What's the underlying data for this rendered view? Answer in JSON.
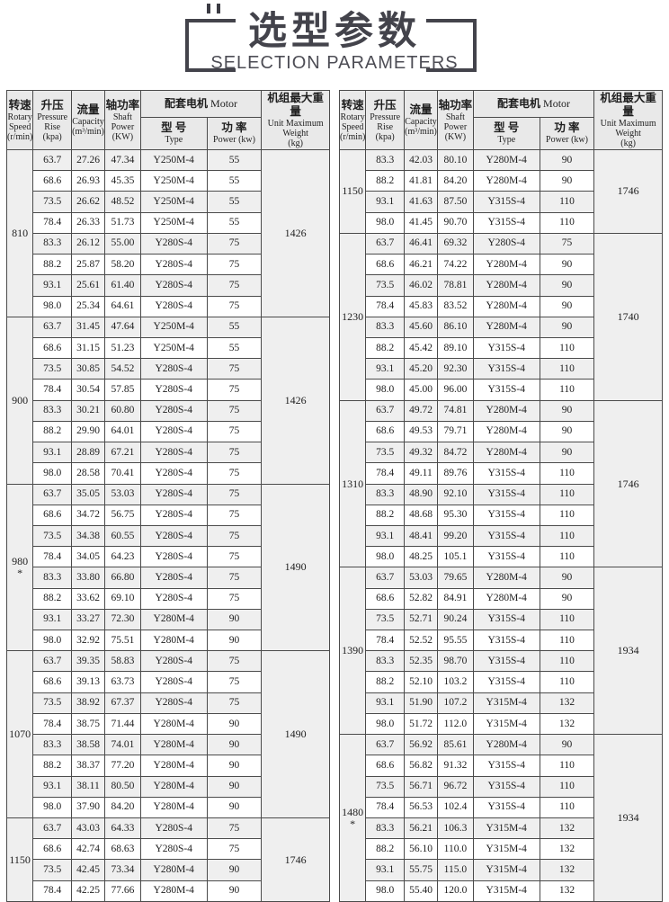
{
  "title": {
    "zh": "选型参数",
    "en": "SELECTION PARAMETERS"
  },
  "colors": {
    "title_text": "#43434b",
    "header_bg": "#e9e9e9",
    "row_shade": "#efefef",
    "border": "#4b4b4b"
  },
  "header": {
    "rotary_speed": {
      "zh": "转速",
      "en": "Rotary\nSpeed\n(r/min)"
    },
    "pressure_rise": {
      "zh": "升压",
      "en": "Pressure\nRise\n(kpa)"
    },
    "capacity": {
      "zh": "流量",
      "en": "Capacity\n(m³/min)"
    },
    "shaft_power": {
      "zh": "轴功率",
      "en": "Shaft\nPower\n(KW)"
    },
    "motor": {
      "zh": "配套电机",
      "en": " Motor"
    },
    "motor_type": {
      "zh": "型 号",
      "en": "Type"
    },
    "motor_power": {
      "zh": "功 率",
      "en": "Power (kw)"
    },
    "weight": {
      "zh": "机组最大重量",
      "en": "Unit Maximum\nWeight\n(kg)"
    }
  },
  "tables": [
    {
      "side": "left",
      "groups": [
        {
          "speed": "810",
          "note": "",
          "weight": "1426",
          "rows": [
            [
              "63.7",
              "27.26",
              "47.34",
              "Y250M-4",
              "55"
            ],
            [
              "68.6",
              "26.93",
              "45.35",
              "Y250M-4",
              "55"
            ],
            [
              "73.5",
              "26.62",
              "48.52",
              "Y250M-4",
              "55"
            ],
            [
              "78.4",
              "26.33",
              "51.73",
              "Y250M-4",
              "55"
            ],
            [
              "83.3",
              "26.12",
              "55.00",
              "Y280S-4",
              "75"
            ],
            [
              "88.2",
              "25.87",
              "58.20",
              "Y280S-4",
              "75"
            ],
            [
              "93.1",
              "25.61",
              "61.40",
              "Y280S-4",
              "75"
            ],
            [
              "98.0",
              "25.34",
              "64.61",
              "Y280S-4",
              "75"
            ]
          ]
        },
        {
          "speed": "900",
          "note": "",
          "weight": "1426",
          "rows": [
            [
              "63.7",
              "31.45",
              "47.64",
              "Y250M-4",
              "55"
            ],
            [
              "68.6",
              "31.15",
              "51.23",
              "Y250M-4",
              "55"
            ],
            [
              "73.5",
              "30.85",
              "54.52",
              "Y280S-4",
              "75"
            ],
            [
              "78.4",
              "30.54",
              "57.85",
              "Y280S-4",
              "75"
            ],
            [
              "83.3",
              "30.21",
              "60.80",
              "Y280S-4",
              "75"
            ],
            [
              "88.2",
              "29.90",
              "64.01",
              "Y280S-4",
              "75"
            ],
            [
              "93.1",
              "28.89",
              "67.21",
              "Y280S-4",
              "75"
            ],
            [
              "98.0",
              "28.58",
              "70.41",
              "Y280S-4",
              "75"
            ]
          ]
        },
        {
          "speed": "980",
          "note": "*",
          "weight": "1490",
          "rows": [
            [
              "63.7",
              "35.05",
              "53.03",
              "Y280S-4",
              "75"
            ],
            [
              "68.6",
              "34.72",
              "56.75",
              "Y280S-4",
              "75"
            ],
            [
              "73.5",
              "34.38",
              "60.55",
              "Y280S-4",
              "75"
            ],
            [
              "78.4",
              "34.05",
              "64.23",
              "Y280S-4",
              "75"
            ],
            [
              "83.3",
              "33.80",
              "66.80",
              "Y280S-4",
              "75"
            ],
            [
              "88.2",
              "33.62",
              "69.10",
              "Y280S-4",
              "75"
            ],
            [
              "93.1",
              "33.27",
              "72.30",
              "Y280M-4",
              "90"
            ],
            [
              "98.0",
              "32.92",
              "75.51",
              "Y280M-4",
              "90"
            ]
          ]
        },
        {
          "speed": "1070",
          "note": "",
          "weight": "1490",
          "rows": [
            [
              "63.7",
              "39.35",
              "58.83",
              "Y280S-4",
              "75"
            ],
            [
              "68.6",
              "39.13",
              "63.73",
              "Y280S-4",
              "75"
            ],
            [
              "73.5",
              "38.92",
              "67.37",
              "Y280S-4",
              "75"
            ],
            [
              "78.4",
              "38.75",
              "71.44",
              "Y280M-4",
              "90"
            ],
            [
              "83.3",
              "38.58",
              "74.01",
              "Y280M-4",
              "90"
            ],
            [
              "88.2",
              "38.37",
              "77.20",
              "Y280M-4",
              "90"
            ],
            [
              "93.1",
              "38.11",
              "80.50",
              "Y280M-4",
              "90"
            ],
            [
              "98.0",
              "37.90",
              "84.20",
              "Y280M-4",
              "90"
            ]
          ]
        },
        {
          "speed": "1150",
          "note": "",
          "weight": "1746",
          "rows": [
            [
              "63.7",
              "43.03",
              "64.33",
              "Y280S-4",
              "75"
            ],
            [
              "68.6",
              "42.74",
              "68.63",
              "Y280S-4",
              "75"
            ],
            [
              "73.5",
              "42.45",
              "73.34",
              "Y280M-4",
              "90"
            ],
            [
              "78.4",
              "42.25",
              "77.66",
              "Y280M-4",
              "90"
            ]
          ]
        }
      ]
    },
    {
      "side": "right",
      "groups": [
        {
          "speed": "1150",
          "note": "",
          "weight": "1746",
          "rows": [
            [
              "83.3",
              "42.03",
              "80.10",
              "Y280M-4",
              "90"
            ],
            [
              "88.2",
              "41.81",
              "84.20",
              "Y280M-4",
              "90"
            ],
            [
              "93.1",
              "41.63",
              "87.50",
              "Y315S-4",
              "110"
            ],
            [
              "98.0",
              "41.45",
              "90.70",
              "Y315S-4",
              "110"
            ]
          ]
        },
        {
          "speed": "1230",
          "note": "",
          "weight": "1740",
          "rows": [
            [
              "63.7",
              "46.41",
              "69.32",
              "Y280S-4",
              "75"
            ],
            [
              "68.6",
              "46.21",
              "74.22",
              "Y280M-4",
              "90"
            ],
            [
              "73.5",
              "46.02",
              "78.81",
              "Y280M-4",
              "90"
            ],
            [
              "78.4",
              "45.83",
              "83.52",
              "Y280M-4",
              "90"
            ],
            [
              "83.3",
              "45.60",
              "86.10",
              "Y280M-4",
              "90"
            ],
            [
              "88.2",
              "45.42",
              "89.10",
              "Y315S-4",
              "110"
            ],
            [
              "93.1",
              "45.20",
              "92.30",
              "Y315S-4",
              "110"
            ],
            [
              "98.0",
              "45.00",
              "96.00",
              "Y315S-4",
              "110"
            ]
          ]
        },
        {
          "speed": "1310",
          "note": "",
          "weight": "1746",
          "rows": [
            [
              "63.7",
              "49.72",
              "74.81",
              "Y280M-4",
              "90"
            ],
            [
              "68.6",
              "49.53",
              "79.71",
              "Y280M-4",
              "90"
            ],
            [
              "73.5",
              "49.32",
              "84.72",
              "Y280M-4",
              "90"
            ],
            [
              "78.4",
              "49.11",
              "89.76",
              "Y315S-4",
              "110"
            ],
            [
              "83.3",
              "48.90",
              "92.10",
              "Y315S-4",
              "110"
            ],
            [
              "88.2",
              "48.68",
              "95.30",
              "Y315S-4",
              "110"
            ],
            [
              "93.1",
              "48.41",
              "99.20",
              "Y315S-4",
              "110"
            ],
            [
              "98.0",
              "48.25",
              "105.1",
              "Y315S-4",
              "110"
            ]
          ]
        },
        {
          "speed": "1390",
          "note": "",
          "weight": "1934",
          "rows": [
            [
              "63.7",
              "53.03",
              "79.65",
              "Y280M-4",
              "90"
            ],
            [
              "68.6",
              "52.82",
              "84.91",
              "Y280M-4",
              "90"
            ],
            [
              "73.5",
              "52.71",
              "90.24",
              "Y315S-4",
              "110"
            ],
            [
              "78.4",
              "52.52",
              "95.55",
              "Y315S-4",
              "110"
            ],
            [
              "83.3",
              "52.35",
              "98.70",
              "Y315S-4",
              "110"
            ],
            [
              "88.2",
              "52.10",
              "103.2",
              "Y315S-4",
              "110"
            ],
            [
              "93.1",
              "51.90",
              "107.2",
              "Y315M-4",
              "132"
            ],
            [
              "98.0",
              "51.72",
              "112.0",
              "Y315M-4",
              "132"
            ]
          ]
        },
        {
          "speed": "1480",
          "note": "*",
          "weight": "1934",
          "rows": [
            [
              "63.7",
              "56.92",
              "85.61",
              "Y280M-4",
              "90"
            ],
            [
              "68.6",
              "56.82",
              "91.32",
              "Y315S-4",
              "110"
            ],
            [
              "73.5",
              "56.71",
              "96.72",
              "Y315S-4",
              "110"
            ],
            [
              "78.4",
              "56.53",
              "102.4",
              "Y315S-4",
              "110"
            ],
            [
              "83.3",
              "56.21",
              "106.3",
              "Y315M-4",
              "132"
            ],
            [
              "88.2",
              "56.10",
              "110.0",
              "Y315M-4",
              "132"
            ],
            [
              "93.1",
              "55.75",
              "115.0",
              "Y315M-4",
              "132"
            ],
            [
              "98.0",
              "55.40",
              "120.0",
              "Y315M-4",
              "132"
            ]
          ]
        }
      ]
    }
  ]
}
